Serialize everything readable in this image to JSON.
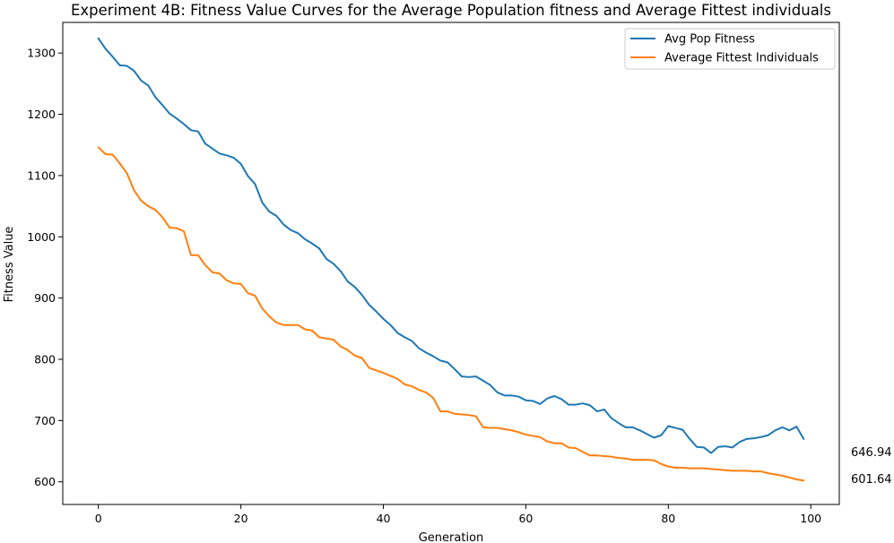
{
  "chart_data": {
    "type": "line",
    "title": "Experiment 4B: Fitness Value Curves for the Average Population fitness and Average Fittest individuals",
    "xlabel": "Generation",
    "ylabel": "Fitness Value",
    "xlim": [
      -5,
      104
    ],
    "ylim": [
      563,
      1350
    ],
    "xticks": [
      0,
      20,
      40,
      60,
      80,
      100
    ],
    "yticks": [
      600,
      700,
      800,
      900,
      1000,
      1100,
      1200,
      1300
    ],
    "grid": false,
    "legend_position": "top-right",
    "series": [
      {
        "name": "Avg Pop Fitness",
        "color": "#1f77b4",
        "values": [
          1324,
          1307,
          1294,
          1280,
          1279,
          1271,
          1255,
          1247,
          1228,
          1215,
          1201,
          1193,
          1184,
          1174,
          1172,
          1152,
          1144,
          1136,
          1133,
          1129,
          1119,
          1099,
          1086,
          1056,
          1041,
          1034,
          1020,
          1011,
          1006,
          996,
          989,
          981,
          964,
          956,
          944,
          927,
          918,
          905,
          889,
          878,
          866,
          856,
          843,
          836,
          830,
          818,
          811,
          805,
          798,
          795,
          784,
          772,
          771,
          772,
          765,
          758,
          746,
          741,
          741,
          739,
          733,
          732,
          727,
          736,
          740,
          735,
          726,
          726,
          728,
          725,
          715,
          718,
          704,
          696,
          689,
          689,
          684,
          678,
          672,
          676,
          691,
          688,
          685,
          670,
          657,
          656,
          647,
          657,
          658,
          656,
          665,
          670,
          671,
          673,
          676,
          684,
          689,
          684,
          690,
          670
        ]
      },
      {
        "name": "Average Fittest Individuals",
        "color": "#ff7f0e",
        "values": [
          1146,
          1135,
          1134,
          1120,
          1104,
          1076,
          1059,
          1050,
          1044,
          1032,
          1015,
          1014,
          1009,
          970,
          970,
          954,
          942,
          940,
          929,
          924,
          923,
          908,
          904,
          883,
          870,
          860,
          856,
          856,
          856,
          849,
          847,
          836,
          834,
          832,
          821,
          815,
          806,
          802,
          786,
          782,
          778,
          773,
          768,
          759,
          756,
          750,
          746,
          737,
          715,
          715,
          711,
          710,
          709,
          707,
          689,
          688,
          688,
          686,
          684,
          681,
          677,
          675,
          673,
          666,
          663,
          663,
          656,
          655,
          649,
          643,
          643,
          642,
          641,
          639,
          638,
          636,
          636,
          636,
          635,
          629,
          625,
          623,
          623,
          622,
          622,
          622,
          621,
          620,
          619,
          618,
          618,
          618,
          617,
          617,
          614,
          612,
          610,
          607,
          604,
          602
        ]
      }
    ],
    "annotations": [
      "646.94",
      "601.64"
    ]
  }
}
